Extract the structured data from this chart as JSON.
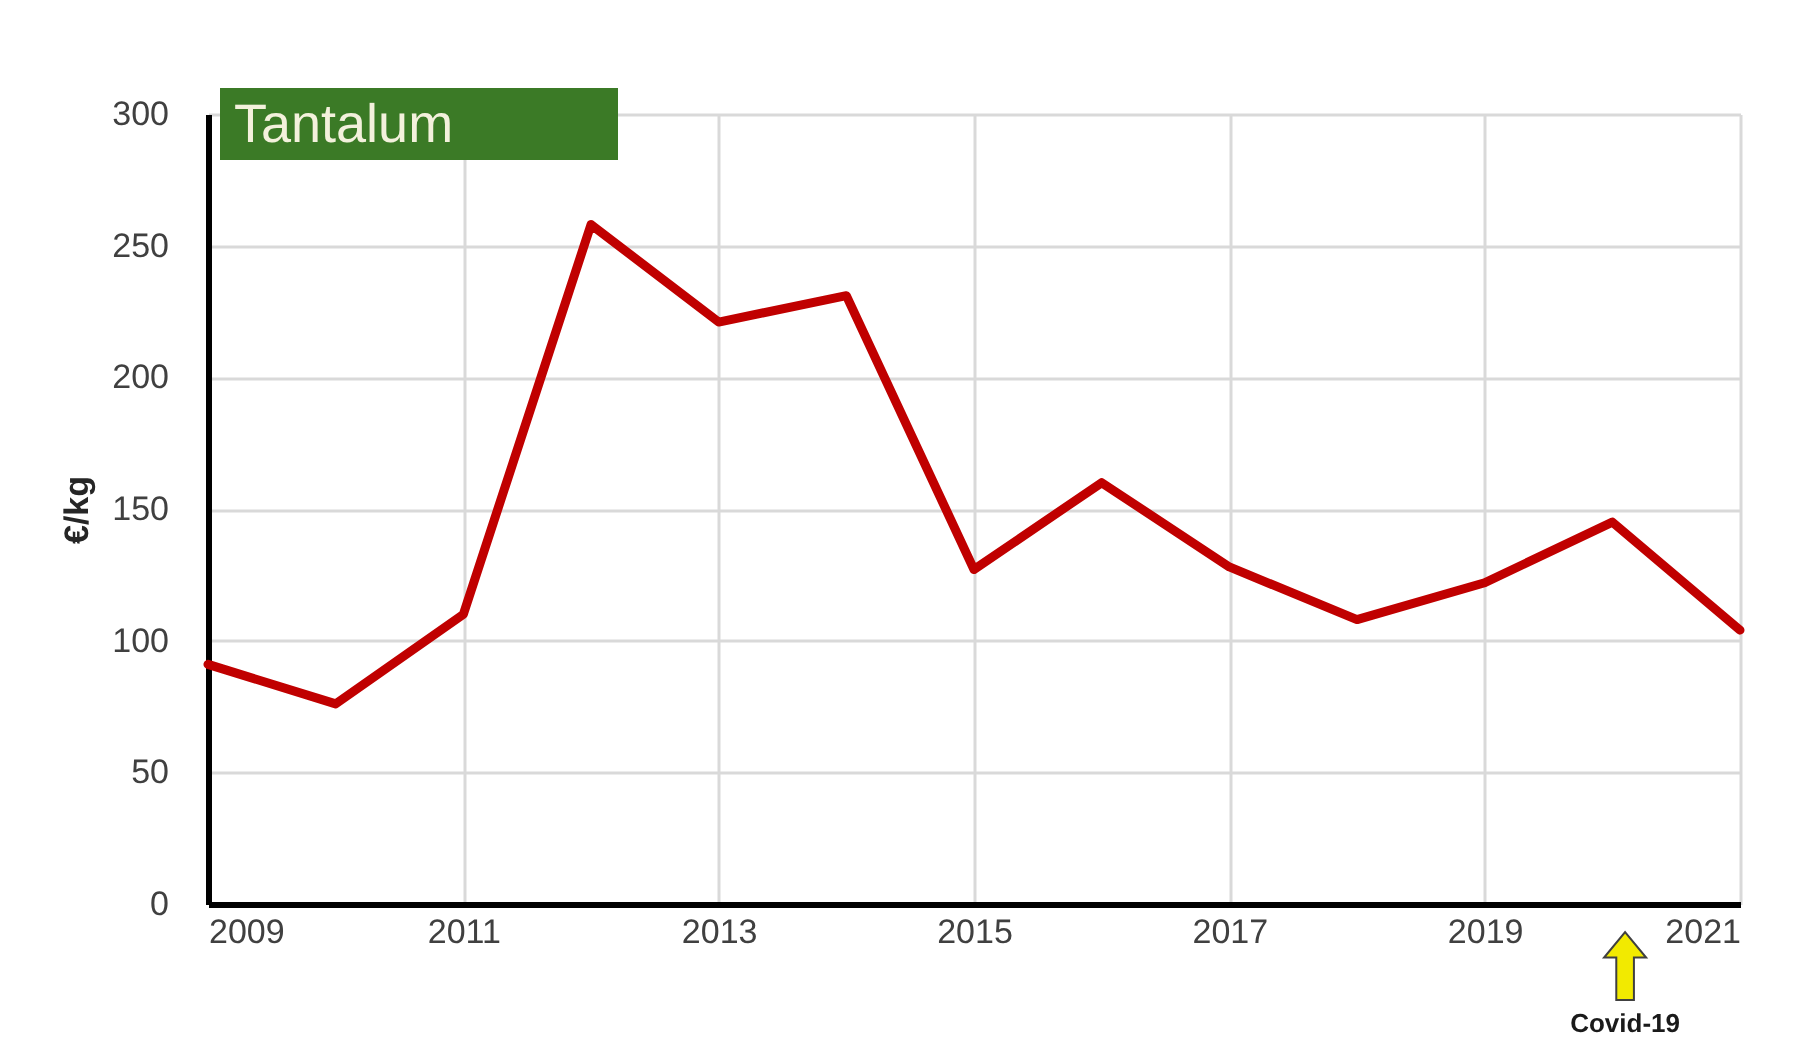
{
  "chart_data": {
    "type": "line",
    "title": "Tantalum",
    "ylabel": "€/kg",
    "x": [
      2009,
      2010,
      2011,
      2012,
      2013,
      2014,
      2015,
      2016,
      2017,
      2018,
      2019,
      2020,
      2021
    ],
    "series": [
      {
        "color": "#c00000",
        "values": [
          91,
          76,
          110,
          258,
          221,
          231,
          127,
          160,
          128,
          108,
          122,
          145,
          104
        ]
      }
    ],
    "xlim": [
      2009,
      2021
    ],
    "xticks": [
      2009,
      2011,
      2013,
      2015,
      2017,
      2019,
      2021
    ],
    "ylim": [
      0,
      300
    ],
    "yticks": [
      0,
      50,
      100,
      150,
      200,
      250,
      300
    ],
    "grid": true,
    "annotations": [
      "Covid-19"
    ]
  }
}
